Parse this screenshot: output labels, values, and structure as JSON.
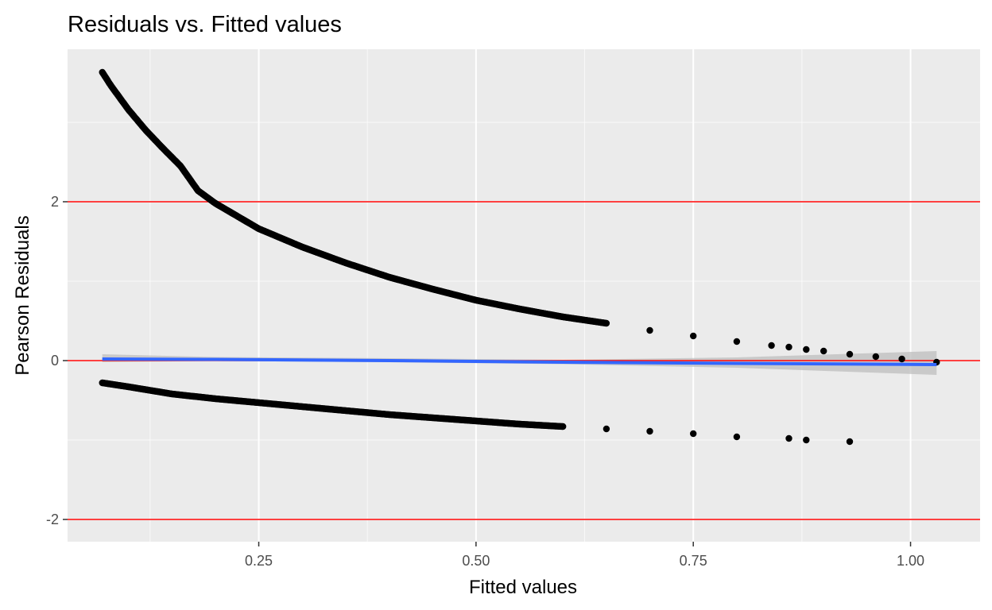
{
  "chart_data": {
    "type": "scatter",
    "title": "Residuals vs. Fitted values",
    "xlabel": "Fitted values",
    "ylabel": "Pearson Residuals",
    "xlim": [
      0.03,
      1.08
    ],
    "ylim": [
      -2.28,
      3.92
    ],
    "x_ticks": [
      0.25,
      0.5,
      0.75,
      1.0
    ],
    "x_tick_labels": [
      "0.25",
      "0.50",
      "0.75",
      "1.00"
    ],
    "y_ticks": [
      -2,
      0,
      2
    ],
    "y_tick_labels": [
      "-2",
      "0",
      "2"
    ],
    "grid": true,
    "legend": "none",
    "colors": {
      "panel": "#ebebeb",
      "grid": "#ffffff",
      "points": "#000000",
      "reference_lines": "#ff0000",
      "smooth_line": "#3366ff",
      "confidence_band": "#bdbdbd"
    },
    "reference_lines": [
      -2,
      0,
      2
    ],
    "series": [
      {
        "values": [
          {
            "x": 0.07,
            "y": 3.63
          },
          {
            "x": 0.08,
            "y": 3.46
          },
          {
            "x": 0.09,
            "y": 3.31
          },
          {
            "x": 0.1,
            "y": 3.16
          },
          {
            "x": 0.12,
            "y": 2.9
          },
          {
            "x": 0.14,
            "y": 2.67
          },
          {
            "x": 0.16,
            "y": 2.45
          },
          {
            "x": 0.18,
            "y": 2.14
          },
          {
            "x": 0.2,
            "y": 1.98
          },
          {
            "x": 0.25,
            "y": 1.66
          },
          {
            "x": 0.3,
            "y": 1.43
          },
          {
            "x": 0.35,
            "y": 1.23
          },
          {
            "x": 0.4,
            "y": 1.05
          },
          {
            "x": 0.45,
            "y": 0.9
          },
          {
            "x": 0.5,
            "y": 0.76
          },
          {
            "x": 0.55,
            "y": 0.65
          },
          {
            "x": 0.6,
            "y": 0.55
          },
          {
            "x": 0.65,
            "y": 0.47
          },
          {
            "x": 0.7,
            "y": 0.38
          },
          {
            "x": 0.75,
            "y": 0.31
          },
          {
            "x": 0.8,
            "y": 0.24
          },
          {
            "x": 0.84,
            "y": 0.19
          },
          {
            "x": 0.86,
            "y": 0.17
          },
          {
            "x": 0.88,
            "y": 0.14
          },
          {
            "x": 0.9,
            "y": 0.12
          },
          {
            "x": 0.93,
            "y": 0.08
          },
          {
            "x": 0.96,
            "y": 0.05
          },
          {
            "x": 0.99,
            "y": 0.02
          },
          {
            "x": 1.03,
            "y": -0.02
          }
        ]
      },
      {
        "values": [
          {
            "x": 0.07,
            "y": -0.28
          },
          {
            "x": 0.1,
            "y": -0.33
          },
          {
            "x": 0.15,
            "y": -0.42
          },
          {
            "x": 0.2,
            "y": -0.48
          },
          {
            "x": 0.25,
            "y": -0.53
          },
          {
            "x": 0.3,
            "y": -0.58
          },
          {
            "x": 0.35,
            "y": -0.63
          },
          {
            "x": 0.4,
            "y": -0.68
          },
          {
            "x": 0.45,
            "y": -0.72
          },
          {
            "x": 0.5,
            "y": -0.76
          },
          {
            "x": 0.55,
            "y": -0.8
          },
          {
            "x": 0.6,
            "y": -0.83
          },
          {
            "x": 0.65,
            "y": -0.86
          },
          {
            "x": 0.7,
            "y": -0.89
          },
          {
            "x": 0.75,
            "y": -0.92
          },
          {
            "x": 0.8,
            "y": -0.96
          },
          {
            "x": 0.86,
            "y": -0.98
          },
          {
            "x": 0.88,
            "y": -1.0
          },
          {
            "x": 0.93,
            "y": -1.02
          }
        ]
      }
    ],
    "smooth": {
      "x": [
        0.07,
        0.2,
        0.4,
        0.6,
        0.8,
        1.03
      ],
      "y": [
        0.02,
        0.015,
        0.0,
        -0.02,
        -0.035,
        -0.05
      ],
      "band_lower": [
        -0.02,
        -0.005,
        -0.02,
        -0.045,
        -0.09,
        -0.18
      ],
      "band_upper": [
        0.08,
        0.045,
        0.03,
        0.01,
        0.04,
        0.12
      ]
    }
  }
}
